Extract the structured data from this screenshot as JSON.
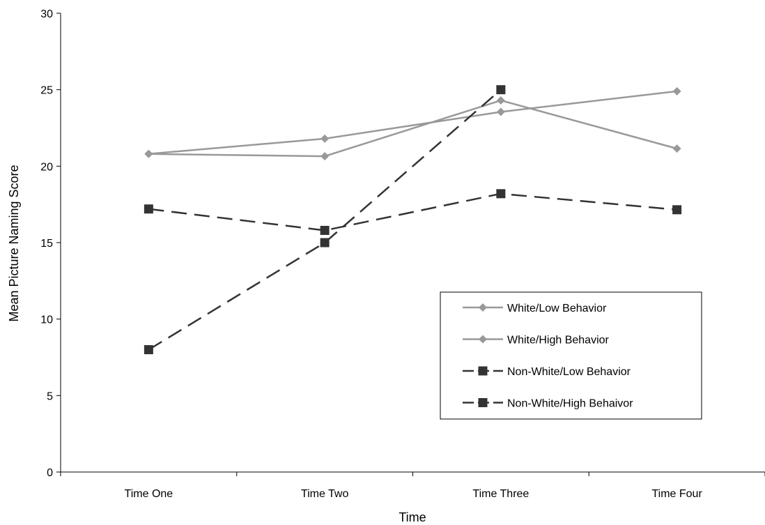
{
  "chart_data": {
    "type": "line",
    "title": "",
    "xlabel": "Time",
    "ylabel": "Mean Picture Naming Score",
    "categories": [
      "Time One",
      "Time Two",
      "Time Three",
      "Time Four"
    ],
    "ylim": [
      0,
      30
    ],
    "yticks": [
      "0",
      "5",
      "10",
      "15",
      "20",
      "25",
      "30"
    ],
    "grid": false,
    "legend_position": "right",
    "series": [
      {
        "name": "White/Low Behavior",
        "values": [
          20.8,
          20.65,
          24.3,
          21.15
        ],
        "color": "#999999",
        "marker": "diamond",
        "dash": "solid"
      },
      {
        "name": "White/High Behavior",
        "values": [
          20.8,
          21.8,
          23.55,
          24.9
        ],
        "color": "#999999",
        "marker": "diamond",
        "dash": "solid"
      },
      {
        "name": "Non-White/Low Behavior",
        "values": [
          17.2,
          15.8,
          18.2,
          17.15
        ],
        "color": "#333333",
        "marker": "square",
        "dash": "long-dash"
      },
      {
        "name": "Non-White/High Behaivor",
        "values": [
          8.0,
          15.0,
          25.0,
          null
        ],
        "color": "#333333",
        "marker": "square",
        "dash": "long-dash"
      }
    ]
  }
}
